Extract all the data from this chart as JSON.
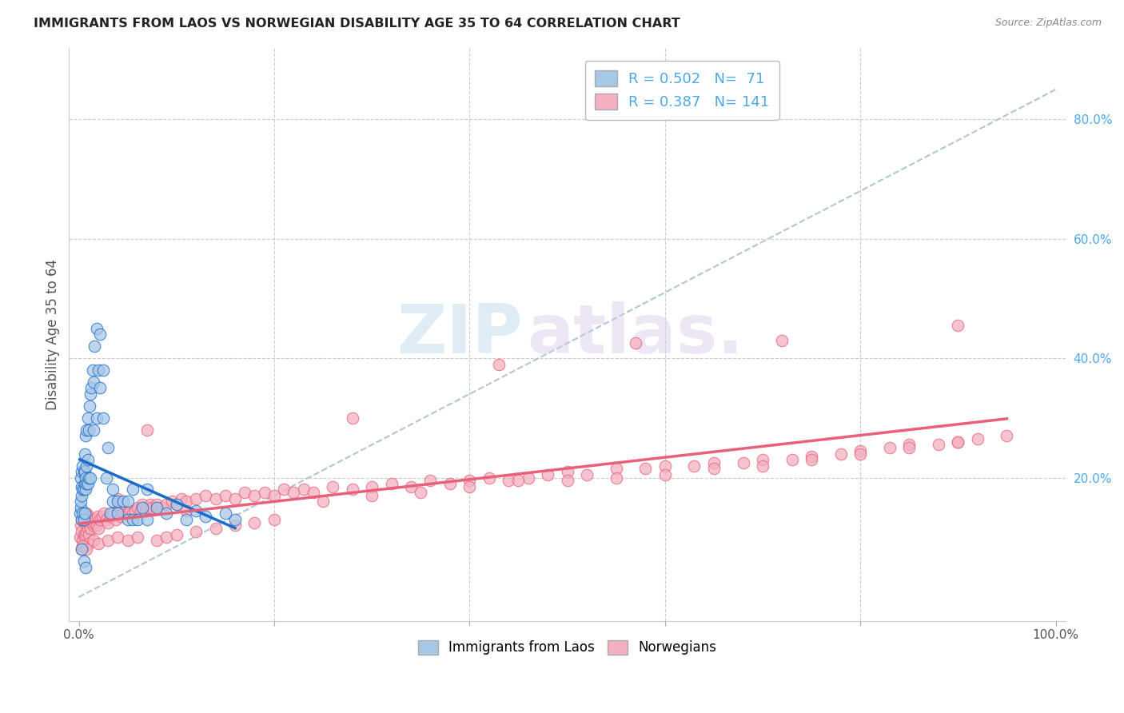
{
  "title": "IMMIGRANTS FROM LAOS VS NORWEGIAN DISABILITY AGE 35 TO 64 CORRELATION CHART",
  "source": "Source: ZipAtlas.com",
  "ylabel": "Disability Age 35 to 64",
  "xlim": [
    -0.01,
    1.01
  ],
  "ylim": [
    -0.04,
    0.92
  ],
  "R_laos": 0.502,
  "N_laos": 71,
  "R_norw": 0.387,
  "N_norw": 141,
  "laos_color": "#a8c8e8",
  "norw_color": "#f4b0c0",
  "laos_line_color": "#1a6cc8",
  "norw_line_color": "#e8607a",
  "dashed_line_color": "#aabfd0",
  "background_color": "#ffffff",
  "watermark_zip": "ZIP",
  "watermark_atlas": "atlas.",
  "legend_labels": [
    "Immigrants from Laos",
    "Norwegians"
  ],
  "laos_x": [
    0.001,
    0.002,
    0.002,
    0.002,
    0.003,
    0.003,
    0.003,
    0.003,
    0.004,
    0.004,
    0.004,
    0.005,
    0.005,
    0.005,
    0.006,
    0.006,
    0.006,
    0.006,
    0.007,
    0.007,
    0.007,
    0.008,
    0.008,
    0.008,
    0.009,
    0.009,
    0.009,
    0.01,
    0.01,
    0.011,
    0.012,
    0.012,
    0.013,
    0.014,
    0.015,
    0.015,
    0.016,
    0.018,
    0.018,
    0.02,
    0.022,
    0.022,
    0.025,
    0.025,
    0.028,
    0.03,
    0.032,
    0.035,
    0.035,
    0.04,
    0.04,
    0.045,
    0.05,
    0.05,
    0.055,
    0.055,
    0.06,
    0.065,
    0.07,
    0.07,
    0.08,
    0.09,
    0.1,
    0.11,
    0.12,
    0.13,
    0.15,
    0.16,
    0.003,
    0.005,
    0.007
  ],
  "laos_y": [
    0.14,
    0.15,
    0.16,
    0.2,
    0.13,
    0.17,
    0.185,
    0.21,
    0.14,
    0.18,
    0.22,
    0.13,
    0.18,
    0.21,
    0.14,
    0.19,
    0.21,
    0.24,
    0.18,
    0.2,
    0.27,
    0.19,
    0.22,
    0.28,
    0.19,
    0.23,
    0.3,
    0.2,
    0.28,
    0.32,
    0.2,
    0.34,
    0.35,
    0.38,
    0.28,
    0.36,
    0.42,
    0.3,
    0.45,
    0.38,
    0.35,
    0.44,
    0.3,
    0.38,
    0.2,
    0.25,
    0.14,
    0.16,
    0.18,
    0.14,
    0.16,
    0.16,
    0.13,
    0.16,
    0.13,
    0.18,
    0.13,
    0.15,
    0.13,
    0.18,
    0.15,
    0.14,
    0.155,
    0.13,
    0.145,
    0.135,
    0.14,
    0.13,
    0.08,
    0.06,
    0.05
  ],
  "norw_x": [
    0.001,
    0.002,
    0.003,
    0.003,
    0.004,
    0.005,
    0.005,
    0.006,
    0.006,
    0.007,
    0.007,
    0.008,
    0.008,
    0.009,
    0.01,
    0.01,
    0.011,
    0.012,
    0.013,
    0.014,
    0.015,
    0.016,
    0.017,
    0.018,
    0.019,
    0.02,
    0.022,
    0.024,
    0.026,
    0.028,
    0.03,
    0.032,
    0.035,
    0.038,
    0.04,
    0.043,
    0.045,
    0.048,
    0.05,
    0.053,
    0.055,
    0.058,
    0.06,
    0.063,
    0.065,
    0.068,
    0.07,
    0.073,
    0.075,
    0.08,
    0.085,
    0.09,
    0.095,
    0.1,
    0.105,
    0.11,
    0.12,
    0.13,
    0.14,
    0.15,
    0.16,
    0.17,
    0.18,
    0.19,
    0.2,
    0.21,
    0.22,
    0.23,
    0.24,
    0.26,
    0.28,
    0.3,
    0.32,
    0.34,
    0.36,
    0.38,
    0.4,
    0.42,
    0.44,
    0.46,
    0.48,
    0.5,
    0.52,
    0.55,
    0.58,
    0.6,
    0.63,
    0.65,
    0.68,
    0.7,
    0.73,
    0.75,
    0.78,
    0.8,
    0.83,
    0.85,
    0.88,
    0.9,
    0.92,
    0.95,
    0.003,
    0.006,
    0.01,
    0.015,
    0.02,
    0.03,
    0.04,
    0.05,
    0.06,
    0.07,
    0.08,
    0.09,
    0.1,
    0.12,
    0.14,
    0.16,
    0.18,
    0.2,
    0.25,
    0.3,
    0.35,
    0.4,
    0.45,
    0.5,
    0.55,
    0.6,
    0.65,
    0.7,
    0.75,
    0.8,
    0.85,
    0.9,
    0.004,
    0.008,
    0.04,
    0.11,
    0.28,
    0.43,
    0.57,
    0.72,
    0.9
  ],
  "norw_y": [
    0.1,
    0.12,
    0.11,
    0.13,
    0.095,
    0.105,
    0.13,
    0.1,
    0.125,
    0.105,
    0.13,
    0.11,
    0.14,
    0.115,
    0.105,
    0.135,
    0.12,
    0.115,
    0.125,
    0.13,
    0.12,
    0.125,
    0.13,
    0.12,
    0.135,
    0.115,
    0.13,
    0.135,
    0.14,
    0.13,
    0.125,
    0.135,
    0.14,
    0.13,
    0.145,
    0.135,
    0.14,
    0.145,
    0.14,
    0.145,
    0.14,
    0.145,
    0.15,
    0.145,
    0.155,
    0.145,
    0.15,
    0.155,
    0.15,
    0.155,
    0.15,
    0.155,
    0.16,
    0.155,
    0.165,
    0.16,
    0.165,
    0.17,
    0.165,
    0.17,
    0.165,
    0.175,
    0.17,
    0.175,
    0.17,
    0.18,
    0.175,
    0.18,
    0.175,
    0.185,
    0.18,
    0.185,
    0.19,
    0.185,
    0.195,
    0.19,
    0.195,
    0.2,
    0.195,
    0.2,
    0.205,
    0.21,
    0.205,
    0.215,
    0.215,
    0.22,
    0.22,
    0.225,
    0.225,
    0.23,
    0.23,
    0.235,
    0.24,
    0.245,
    0.25,
    0.255,
    0.255,
    0.26,
    0.265,
    0.27,
    0.08,
    0.085,
    0.09,
    0.095,
    0.09,
    0.095,
    0.1,
    0.095,
    0.1,
    0.28,
    0.095,
    0.1,
    0.105,
    0.11,
    0.115,
    0.12,
    0.125,
    0.13,
    0.16,
    0.17,
    0.175,
    0.185,
    0.195,
    0.195,
    0.2,
    0.205,
    0.215,
    0.22,
    0.23,
    0.24,
    0.25,
    0.26,
    0.085,
    0.08,
    0.165,
    0.145,
    0.3,
    0.39,
    0.425,
    0.43,
    0.455
  ]
}
